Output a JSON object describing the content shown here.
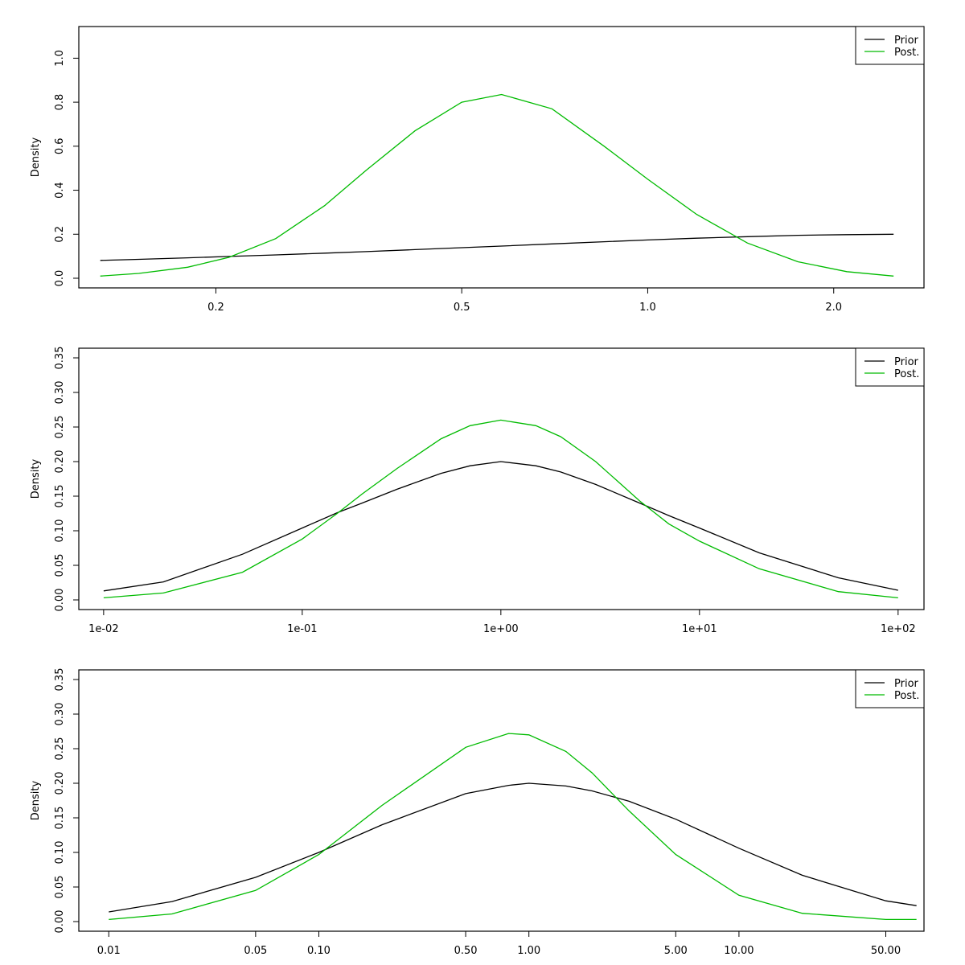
{
  "colors": {
    "prior": "#000000",
    "posterior": "#00bb00"
  },
  "chart_data": [
    {
      "type": "line",
      "x_scale": "log",
      "xlim": [
        0.12,
        2.8
      ],
      "ylim": [
        0,
        1.1
      ],
      "ylabel": "Density",
      "xticks": [
        0.2,
        0.5,
        1.0,
        2.0
      ],
      "xtick_labels": [
        "0.2",
        "0.5",
        "1.0",
        "2.0"
      ],
      "yticks": [
        0.0,
        0.2,
        0.4,
        0.6,
        0.8,
        1.0
      ],
      "ytick_labels": [
        "0.0",
        "0.2",
        "0.4",
        "0.6",
        "0.8",
        "1.0"
      ],
      "legend": {
        "position": "top-right",
        "entries": [
          "Prior",
          "Post."
        ]
      },
      "series": [
        {
          "name": "Prior",
          "color": "#000000",
          "x": [
            0.13,
            0.15,
            0.18,
            0.21,
            0.25,
            0.3,
            0.35,
            0.42,
            0.5,
            0.58,
            0.7,
            0.85,
            1.0,
            1.2,
            1.45,
            1.75,
            2.1,
            2.5
          ],
          "y": [
            0.081,
            0.086,
            0.093,
            0.099,
            0.106,
            0.114,
            0.121,
            0.13,
            0.139,
            0.146,
            0.156,
            0.166,
            0.174,
            0.182,
            0.189,
            0.195,
            0.198,
            0.2
          ]
        },
        {
          "name": "Post.",
          "color": "#00bb00",
          "x": [
            0.13,
            0.15,
            0.18,
            0.21,
            0.25,
            0.3,
            0.35,
            0.42,
            0.5,
            0.58,
            0.7,
            0.85,
            1.0,
            1.2,
            1.45,
            1.75,
            2.1,
            2.5
          ],
          "y": [
            0.01,
            0.022,
            0.05,
            0.095,
            0.18,
            0.33,
            0.49,
            0.67,
            0.8,
            0.835,
            0.77,
            0.6,
            0.45,
            0.29,
            0.16,
            0.075,
            0.03,
            0.01
          ]
        }
      ]
    },
    {
      "type": "line",
      "x_scale": "log",
      "xlim": [
        0.0075,
        135
      ],
      "ylim": [
        0,
        0.35
      ],
      "ylabel": "Density",
      "xticks": [
        0.01,
        0.1,
        1,
        10,
        100
      ],
      "xtick_labels": [
        "1e-02",
        "1e-01",
        "1e+00",
        "1e+01",
        "1e+02"
      ],
      "yticks": [
        0.0,
        0.05,
        0.1,
        0.15,
        0.2,
        0.25,
        0.3,
        0.35
      ],
      "ytick_labels": [
        "0.00",
        "0.05",
        "0.10",
        "0.15",
        "0.20",
        "0.25",
        "0.30",
        "0.35"
      ],
      "legend": {
        "position": "top-right",
        "entries": [
          "Prior",
          "Post."
        ]
      },
      "series": [
        {
          "name": "Prior",
          "color": "#000000",
          "x": [
            0.01,
            0.02,
            0.05,
            0.1,
            0.15,
            0.2,
            0.3,
            0.5,
            0.7,
            1,
            1.5,
            2,
            3,
            5,
            7,
            10,
            20,
            50,
            100
          ],
          "y": [
            0.013,
            0.026,
            0.066,
            0.104,
            0.126,
            0.14,
            0.16,
            0.183,
            0.194,
            0.2,
            0.194,
            0.185,
            0.167,
            0.14,
            0.122,
            0.104,
            0.068,
            0.032,
            0.014
          ]
        },
        {
          "name": "Post.",
          "color": "#00bb00",
          "x": [
            0.01,
            0.02,
            0.05,
            0.1,
            0.15,
            0.2,
            0.3,
            0.5,
            0.7,
            1,
            1.5,
            2,
            3,
            5,
            7,
            10,
            20,
            50,
            100
          ],
          "y": [
            0.003,
            0.01,
            0.04,
            0.088,
            0.125,
            0.153,
            0.19,
            0.233,
            0.252,
            0.26,
            0.252,
            0.236,
            0.2,
            0.143,
            0.11,
            0.085,
            0.045,
            0.012,
            0.003
          ]
        }
      ]
    },
    {
      "type": "line",
      "x_scale": "log",
      "xlim": [
        0.0072,
        76
      ],
      "ylim": [
        0,
        0.35
      ],
      "ylabel": "Density",
      "xticks": [
        0.01,
        0.05,
        0.1,
        0.5,
        1,
        5,
        10,
        50
      ],
      "xtick_labels": [
        "0.01",
        "0.05",
        "0.10",
        "0.50",
        "1.00",
        "5.00",
        "10.00",
        "50.00"
      ],
      "yticks": [
        0.0,
        0.05,
        0.1,
        0.15,
        0.2,
        0.25,
        0.3,
        0.35
      ],
      "ytick_labels": [
        "0.00",
        "0.05",
        "0.10",
        "0.15",
        "0.20",
        "0.25",
        "0.30",
        "0.35"
      ],
      "legend": {
        "position": "top-right",
        "entries": [
          "Prior",
          "Post."
        ]
      },
      "series": [
        {
          "name": "Prior",
          "color": "#000000",
          "x": [
            0.01,
            0.02,
            0.05,
            0.1,
            0.2,
            0.5,
            0.8,
            1,
            1.5,
            2,
            3,
            5,
            10,
            20,
            50,
            70
          ],
          "y": [
            0.014,
            0.029,
            0.064,
            0.1,
            0.14,
            0.185,
            0.197,
            0.2,
            0.196,
            0.189,
            0.174,
            0.148,
            0.106,
            0.067,
            0.03,
            0.023
          ]
        },
        {
          "name": "Post.",
          "color": "#00bb00",
          "x": [
            0.01,
            0.02,
            0.05,
            0.1,
            0.2,
            0.5,
            0.8,
            1,
            1.5,
            2,
            3,
            5,
            10,
            20,
            50,
            70
          ],
          "y": [
            0.003,
            0.011,
            0.045,
            0.097,
            0.168,
            0.252,
            0.272,
            0.27,
            0.246,
            0.215,
            0.16,
            0.097,
            0.038,
            0.012,
            0.003,
            0.003
          ]
        }
      ]
    }
  ]
}
